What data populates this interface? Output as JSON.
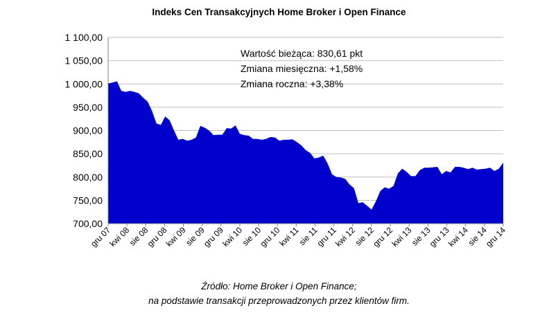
{
  "chart_data": {
    "type": "area",
    "title": "Indeks Cen Transakcyjnych Home Broker i Open Finance",
    "xlabel": "",
    "ylabel": "",
    "ylim": [
      700,
      1100
    ],
    "yticks": [
      "700,00",
      "750,00",
      "800,00",
      "850,00",
      "900,00",
      "950,00",
      "1 000,00",
      "1 050,00",
      "1 100,00"
    ],
    "grid": true,
    "color": "#0000CC",
    "x_tick_labels": [
      "gru 07",
      "kwi 08",
      "sie 08",
      "gru 08",
      "kwi 09",
      "sie 09",
      "gru 09",
      "kwi 10",
      "sie 10",
      "gru 10",
      "kwi 11",
      "sie 11",
      "gru 11",
      "kwi 12",
      "sie 12",
      "gru 12",
      "kwi 13",
      "sie 13",
      "gru 13",
      "kwi 14",
      "sie 14",
      "gru 14"
    ],
    "x_start": "gru 07",
    "x_end": "gru 14",
    "values": [
      1001,
      1003,
      1006,
      985,
      983,
      985,
      983,
      980,
      970,
      962,
      942,
      915,
      912,
      930,
      922,
      900,
      880,
      882,
      878,
      880,
      885,
      910,
      906,
      900,
      890,
      891,
      891,
      905,
      904,
      911,
      893,
      890,
      889,
      882,
      882,
      880,
      882,
      886,
      885,
      878,
      880,
      880,
      881,
      875,
      868,
      858,
      852,
      840,
      842,
      846,
      829,
      806,
      800,
      799,
      796,
      784,
      776,
      744,
      746,
      738,
      730,
      748,
      770,
      778,
      775,
      781,
      808,
      818,
      811,
      802,
      802,
      815,
      820,
      820,
      821,
      822,
      806,
      813,
      810,
      822,
      822,
      820,
      817,
      820,
      816,
      817,
      818,
      820,
      813,
      818,
      831
    ],
    "annotations": [
      "Wartość bieżąca: 830,61 pkt",
      "Zmiana miesięczna: +1,58%",
      "Zmiana roczna: +3,38%"
    ]
  },
  "source": {
    "line1": "Źródło: Home Broker i Open Finance;",
    "line2": "na podstawie transakcji przeprowadzonych przez klientów firm."
  }
}
